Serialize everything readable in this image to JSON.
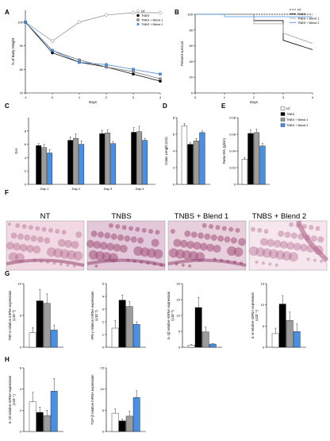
{
  "panels": {
    "A": "A",
    "B": "B",
    "C": "C",
    "D": "D",
    "E": "E",
    "F": "F",
    "G": "G",
    "H": "H"
  },
  "colors": {
    "nt": "#ffffff",
    "tnbs": "#000000",
    "blend1": "#9c9c9c",
    "blend2": "#4a90e2",
    "photo_stain": "#a3507a"
  },
  "photos": [
    "NT",
    "TNBS",
    "TNBS + Blend 1",
    "TNBS + Blend 2"
  ],
  "chart_data": [
    {
      "id": "A",
      "type": "line",
      "ylabel": "% of Body Weight",
      "xlabel": "Days",
      "xlim": [
        -1,
        4
      ],
      "ylim": [
        70,
        105
      ],
      "xticks": [
        -1,
        0,
        1,
        2,
        3,
        4
      ],
      "yticks": [
        70,
        80,
        90,
        100
      ],
      "legend": [
        "NT",
        "TNBS",
        "TNBS + Blend 1",
        "TNBS + Blend 2"
      ],
      "legend_position": "top-right",
      "series": [
        {
          "name": "NT",
          "x": [
            -1,
            0,
            1,
            2,
            3,
            4
          ],
          "values": [
            100,
            92,
            100,
            103,
            104,
            104
          ]
        },
        {
          "name": "TNBS",
          "x": [
            -1,
            0,
            1,
            2,
            3,
            4
          ],
          "values": [
            100,
            87,
            83,
            81,
            78,
            75
          ]
        },
        {
          "name": "TNBS + Blend 1",
          "x": [
            -1,
            0,
            1,
            2,
            3,
            4
          ],
          "values": [
            100,
            88,
            84,
            81,
            79,
            76
          ]
        },
        {
          "name": "TNBS + Blend 2",
          "x": [
            -1,
            0,
            1,
            2,
            3,
            4
          ],
          "values": [
            100,
            88,
            83,
            82,
            80,
            78
          ]
        }
      ]
    },
    {
      "id": "B",
      "type": "line",
      "ylabel": "Percent survival",
      "xlabel": "Days",
      "xlim": [
        0,
        4
      ],
      "ylim": [
        0,
        100
      ],
      "xticks": [
        0,
        1,
        2,
        3,
        4
      ],
      "yticks": [
        0,
        20,
        40,
        60,
        80,
        100
      ],
      "legend": [
        "NT",
        "TNBS",
        "TNBS + Blend 1",
        "TNBS + Blend 2"
      ],
      "legend_position": "top-right",
      "series": [
        {
          "name": "NT",
          "x": [
            0,
            4
          ],
          "values": [
            100,
            100
          ]
        },
        {
          "name": "TNBS",
          "x": [
            0,
            2,
            2,
            3,
            3,
            4
          ],
          "values": [
            100,
            100,
            92,
            92,
            67,
            55
          ]
        },
        {
          "name": "TNBS + Blend 1",
          "x": [
            0,
            2,
            2,
            3,
            3,
            4
          ],
          "values": [
            100,
            100,
            88,
            88,
            76,
            63
          ]
        },
        {
          "name": "TNBS + Blend 2",
          "x": [
            0,
            1,
            1,
            4
          ],
          "values": [
            100,
            100,
            97,
            97
          ]
        }
      ]
    },
    {
      "id": "C",
      "type": "bar",
      "ylabel": "DAI",
      "categories": [
        "Day 1",
        "Day 2",
        "Day 3",
        "Day 4"
      ],
      "ylim": [
        0,
        10
      ],
      "yticks": [
        0,
        2,
        4,
        6,
        8
      ],
      "series": [
        {
          "name": "TNBS",
          "values": [
            5.8,
            6.6,
            7.6,
            7.8
          ],
          "err": [
            0.3,
            0.5,
            0.5,
            0.7
          ]
        },
        {
          "name": "TNBS + Blend 1",
          "values": [
            5.5,
            6.9,
            7.7,
            7.9
          ],
          "err": [
            0.5,
            0.7,
            0.5,
            0.8
          ]
        },
        {
          "name": "TNBS + Blend 2",
          "values": [
            4.7,
            6.0,
            6.1,
            6.6
          ],
          "err": [
            0.5,
            0.5,
            0.3,
            0.3
          ]
        }
      ]
    },
    {
      "id": "D",
      "type": "bar",
      "ylabel": "Colon Length (cm)",
      "ylim": [
        0,
        8
      ],
      "yticks": [
        0,
        2,
        4,
        6,
        8
      ],
      "series": [
        {
          "name": "NT",
          "values": [
            7.0
          ],
          "err": [
            0.3
          ]
        },
        {
          "name": "TNBS",
          "values": [
            4.8
          ],
          "err": [
            0.2
          ]
        },
        {
          "name": "TNBS + Blend 1",
          "values": [
            5.2
          ],
          "err": [
            0.3
          ]
        },
        {
          "name": "TNBS + Blend 2",
          "values": [
            6.2
          ],
          "err": [
            0.2
          ]
        }
      ]
    },
    {
      "id": "E",
      "type": "bar",
      "ylabel": "Ratio W/L (g/cm)",
      "ylim": [
        0,
        0.08
      ],
      "yticks": [
        0.0,
        0.02,
        0.04,
        0.06,
        0.08
      ],
      "legend": [
        "NT",
        "TNBS",
        "TNBS + Blend 1",
        "TNBS + Blend 2"
      ],
      "legend_position": "right",
      "series": [
        {
          "name": "NT",
          "values": [
            0.03
          ],
          "err": [
            0.002
          ]
        },
        {
          "name": "TNBS",
          "values": [
            0.061
          ],
          "err": [
            0.004
          ]
        },
        {
          "name": "TNBS + Blend 1",
          "values": [
            0.062
          ],
          "err": [
            0.004
          ]
        },
        {
          "name": "TNBS + Blend 2",
          "values": [
            0.046
          ],
          "err": [
            0.003
          ]
        }
      ]
    },
    {
      "id": "G1",
      "type": "bar",
      "ylabel": "TNF-α relative mRNA expression",
      "ylabel2": "(x10⁻³)",
      "ylim": [
        0,
        10
      ],
      "yticks": [
        0,
        5,
        10
      ],
      "series": [
        {
          "name": "NT",
          "values": [
            2.3
          ],
          "err": [
            0.8
          ]
        },
        {
          "name": "TNBS",
          "values": [
            7.3
          ],
          "err": [
            1.8
          ]
        },
        {
          "name": "TNBS + Blend 1",
          "values": [
            6.9
          ],
          "err": [
            1.5
          ]
        },
        {
          "name": "TNBS + Blend 2",
          "values": [
            2.7
          ],
          "err": [
            0.8
          ]
        }
      ]
    },
    {
      "id": "G2",
      "type": "bar",
      "ylabel": "IFN-γ relative mRNA expression",
      "ylabel2": "(x10⁻³)",
      "ylim": [
        0,
        5
      ],
      "yticks": [
        0,
        1,
        2,
        3,
        4,
        5
      ],
      "series": [
        {
          "name": "NT",
          "values": [
            1.5
          ],
          "err": [
            0.6
          ]
        },
        {
          "name": "TNBS",
          "values": [
            3.7
          ],
          "err": [
            0.4
          ]
        },
        {
          "name": "TNBS + Blend 1",
          "values": [
            3.2
          ],
          "err": [
            0.4
          ]
        },
        {
          "name": "TNBS + Blend 2",
          "values": [
            1.8
          ],
          "err": [
            0.2
          ]
        }
      ]
    },
    {
      "id": "G3",
      "type": "bar",
      "ylabel": "IL-1β relative mRNA expression",
      "ylabel2": "(x10⁻³)",
      "ylim": [
        0,
        20
      ],
      "yticks": [
        0,
        5,
        10,
        15,
        20
      ],
      "series": [
        {
          "name": "NT",
          "values": [
            0.7
          ],
          "err": [
            0.2
          ]
        },
        {
          "name": "TNBS",
          "values": [
            12.5
          ],
          "err": [
            3.2
          ]
        },
        {
          "name": "TNBS + Blend 1",
          "values": [
            4.8
          ],
          "err": [
            1.5
          ]
        },
        {
          "name": "TNBS + Blend 2",
          "values": [
            1.0
          ],
          "err": [
            0.2
          ]
        }
      ]
    },
    {
      "id": "G4",
      "type": "bar",
      "ylabel": "IL-6 relative mRNA expression",
      "ylabel2": "(x10⁻⁵)",
      "ylim": [
        0,
        15
      ],
      "yticks": [
        0,
        5,
        10,
        15
      ],
      "series": [
        {
          "name": "NT",
          "values": [
            3.2
          ],
          "err": [
            1.3
          ]
        },
        {
          "name": "TNBS",
          "values": [
            10.2
          ],
          "err": [
            2.0
          ]
        },
        {
          "name": "TNBS + Blend 1",
          "values": [
            6.3
          ],
          "err": [
            2.0
          ]
        },
        {
          "name": "TNBS + Blend 2",
          "values": [
            3.7
          ],
          "err": [
            1.8
          ]
        }
      ]
    },
    {
      "id": "H1",
      "type": "bar",
      "ylabel": "IL-10 relative mRNA expression",
      "ylabel2": "(x10⁻⁴)",
      "ylim": [
        0,
        6
      ],
      "yticks": [
        0,
        2,
        4,
        6
      ],
      "series": [
        {
          "name": "NT",
          "values": [
            2.8
          ],
          "err": [
            0.9
          ]
        },
        {
          "name": "TNBS",
          "values": [
            1.8
          ],
          "err": [
            0.5
          ]
        },
        {
          "name": "TNBS + Blend 1",
          "values": [
            1.5
          ],
          "err": [
            0.5
          ]
        },
        {
          "name": "TNBS + Blend 2",
          "values": [
            3.8
          ],
          "err": [
            1.2
          ]
        }
      ]
    },
    {
      "id": "H2",
      "type": "bar",
      "ylabel": "TGF-β relative mRNA expression",
      "ylim": [
        0,
        15
      ],
      "yticks": [
        0,
        5,
        10,
        15
      ],
      "series": [
        {
          "name": "NT",
          "values": [
            4.3
          ],
          "err": [
            1.0
          ]
        },
        {
          "name": "TNBS",
          "values": [
            2.5
          ],
          "err": [
            0.4
          ]
        },
        {
          "name": "TNBS + Blend 1",
          "values": [
            3.6
          ],
          "err": [
            1.2
          ]
        },
        {
          "name": "TNBS + Blend 2",
          "values": [
            8.0
          ],
          "err": [
            1.6
          ]
        }
      ]
    }
  ]
}
